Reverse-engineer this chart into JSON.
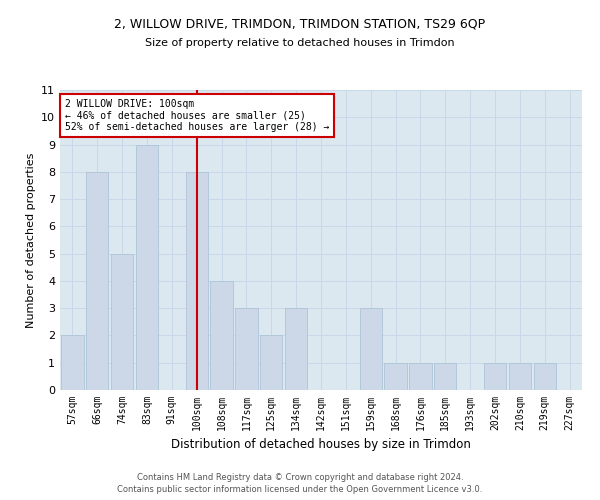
{
  "title1": "2, WILLOW DRIVE, TRIMDON, TRIMDON STATION, TS29 6QP",
  "title2": "Size of property relative to detached houses in Trimdon",
  "xlabel": "Distribution of detached houses by size in Trimdon",
  "ylabel": "Number of detached properties",
  "categories": [
    "57sqm",
    "66sqm",
    "74sqm",
    "83sqm",
    "91sqm",
    "100sqm",
    "108sqm",
    "117sqm",
    "125sqm",
    "134sqm",
    "142sqm",
    "151sqm",
    "159sqm",
    "168sqm",
    "176sqm",
    "185sqm",
    "193sqm",
    "202sqm",
    "210sqm",
    "219sqm",
    "227sqm"
  ],
  "values": [
    2,
    8,
    5,
    9,
    0,
    8,
    4,
    3,
    2,
    3,
    0,
    0,
    3,
    1,
    1,
    1,
    0,
    1,
    1,
    1,
    0
  ],
  "bar_color": "#ccd8e8",
  "bar_edgecolor": "#afc4d8",
  "highlight_index": 5,
  "highlight_line_color": "#cc0000",
  "ylim": [
    0,
    11
  ],
  "yticks": [
    0,
    1,
    2,
    3,
    4,
    5,
    6,
    7,
    8,
    9,
    10,
    11
  ],
  "annotation_text": "2 WILLOW DRIVE: 100sqm\n← 46% of detached houses are smaller (25)\n52% of semi-detached houses are larger (28) →",
  "annotation_box_color": "#ffffff",
  "annotation_box_edgecolor": "#cc0000",
  "footer1": "Contains HM Land Registry data © Crown copyright and database right 2024.",
  "footer2": "Contains public sector information licensed under the Open Government Licence v3.0.",
  "grid_color": "#c8d8e8",
  "background_color": "#dce8f0"
}
